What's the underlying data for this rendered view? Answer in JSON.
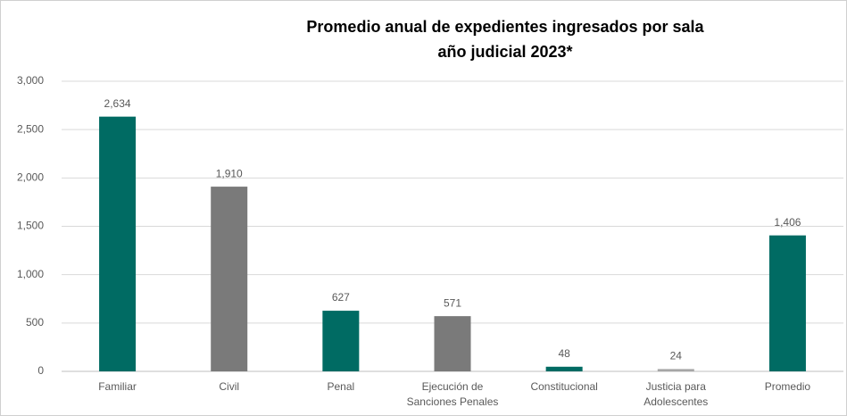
{
  "chart_data": {
    "type": "bar",
    "title": "Promedio anual de expedientes ingresados por sala",
    "subtitle": "año judicial 2023*",
    "categories": [
      "Familiar",
      "Civil",
      "Penal",
      "Ejecución de Sanciones Penales",
      "Constitucional",
      "Justicia para Adolescentes",
      "Promedio"
    ],
    "values": [
      2634,
      1910,
      627,
      571,
      48,
      24,
      1406
    ],
    "value_labels": [
      "2,634",
      "1,910",
      "627",
      "571",
      "48",
      "24",
      "1,406"
    ],
    "colors": [
      "#006b63",
      "#7a7a7a",
      "#006b63",
      "#7a7a7a",
      "#006b63",
      "#a6a6a6",
      "#006b63"
    ],
    "ylim": [
      0,
      3000
    ],
    "yticks": [
      0,
      500,
      {
        "value": 1000,
        "label": "1,000"
      },
      {
        "value": 1500,
        "label": "1,500"
      },
      {
        "value": 2000,
        "label": "2,000"
      },
      {
        "value": 2500,
        "label": "2,500"
      },
      {
        "value": 3000,
        "label": "3,000"
      }
    ],
    "grid": true
  }
}
